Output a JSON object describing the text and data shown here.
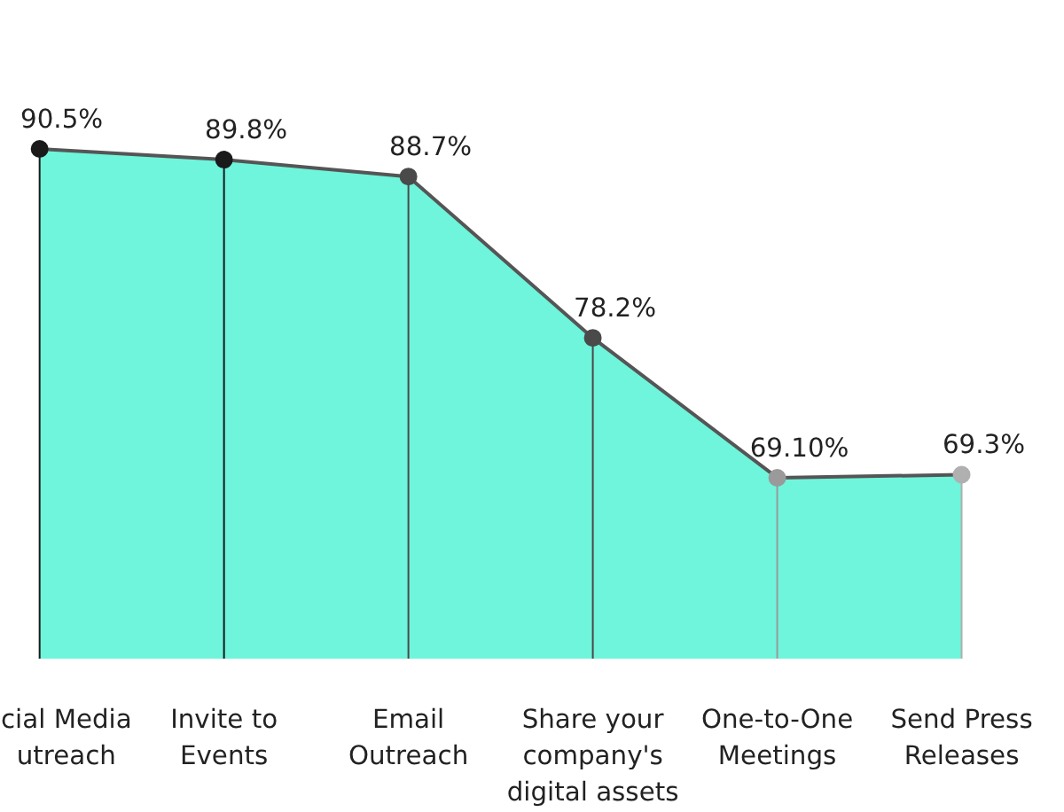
{
  "chart_data": {
    "type": "area",
    "categories": [
      "cial Media\nutreach",
      "Invite to\nEvents",
      "Email\nOutreach",
      "Share your\ncompany's\ndigital assets",
      "One-to-One\nMeetings",
      "Send Press\nReleases"
    ],
    "series": [
      {
        "color": "#3ef2cf",
        "values": [
          90.5,
          89.8,
          88.7,
          78.2,
          69.1,
          69.3
        ],
        "value_labels": [
          "90.5%",
          "89.8%",
          "88.7%",
          "78.2%",
          "69.10%",
          "69.3%"
        ]
      }
    ],
    "colors": [
      "#1a1a1a",
      "#1a1a1a",
      "#4a4a4a",
      "#4a4a4a",
      "#9a9a9a",
      "#b0b0b0"
    ],
    "marker": "circle"
  }
}
